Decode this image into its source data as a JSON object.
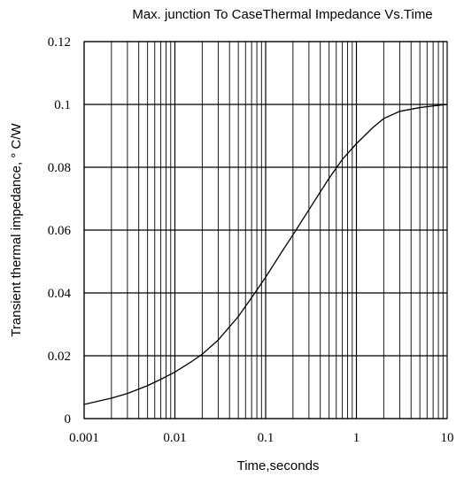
{
  "chart_data": {
    "type": "line",
    "title": "Max. junction To CaseThermal  Impedance  Vs.Time",
    "xlabel": "Time,seconds",
    "ylabel": "Transient thermal impedance, ° C/W",
    "x_scale": "log",
    "xlim": [
      0.001,
      10
    ],
    "ylim": [
      0,
      0.12
    ],
    "x_ticks": [
      "0.001",
      "0.01",
      "0.1",
      "1",
      "10"
    ],
    "y_ticks": [
      "0",
      "0.02",
      "0.04",
      "0.06",
      "0.08",
      "0.1",
      "0.12"
    ],
    "grid": true,
    "series": [
      {
        "x": [
          0.001,
          0.002,
          0.003,
          0.005,
          0.007,
          0.01,
          0.015,
          0.02,
          0.03,
          0.05,
          0.07,
          0.1,
          0.15,
          0.2,
          0.3,
          0.5,
          0.7,
          1,
          1.5,
          2,
          3,
          5,
          7,
          10
        ],
        "y": [
          0.0045,
          0.0065,
          0.008,
          0.0105,
          0.0125,
          0.0148,
          0.018,
          0.0205,
          0.025,
          0.0325,
          0.0385,
          0.045,
          0.053,
          0.0585,
          0.0665,
          0.0765,
          0.0825,
          0.0875,
          0.0925,
          0.0955,
          0.0978,
          0.099,
          0.0995,
          0.1
        ]
      }
    ]
  }
}
